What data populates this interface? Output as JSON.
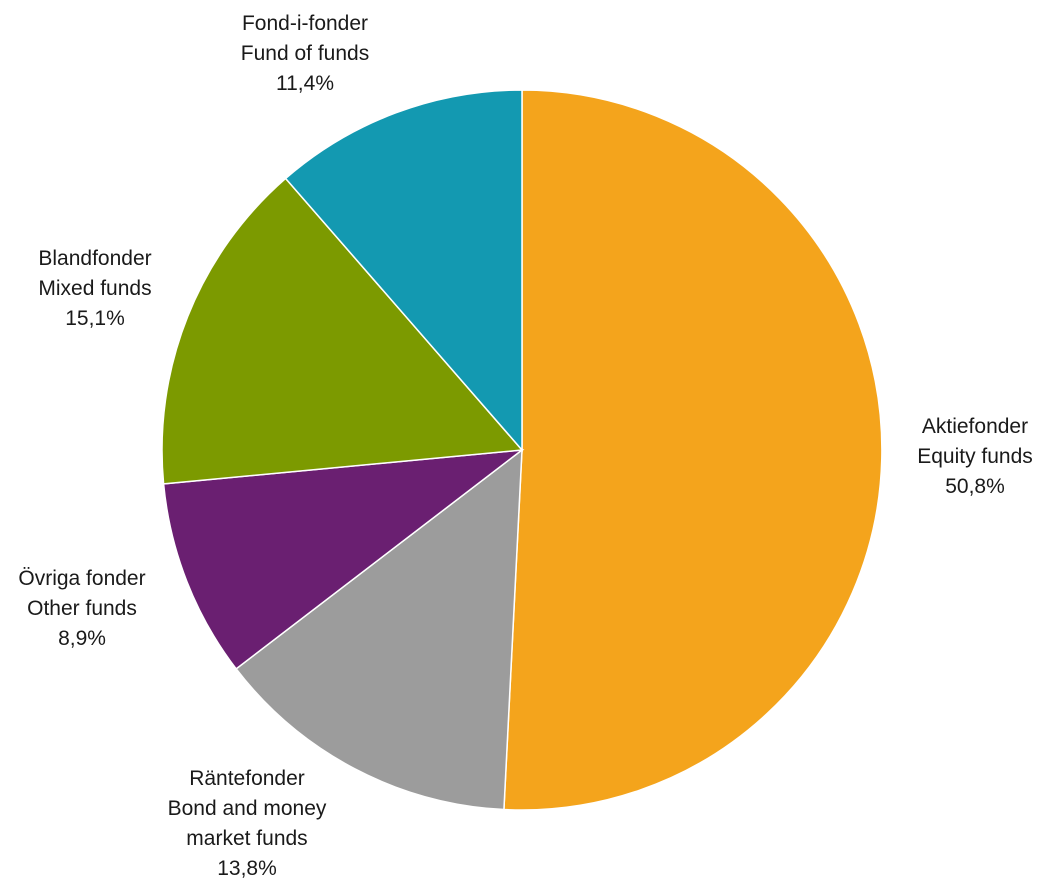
{
  "chart_data": {
    "type": "pie",
    "title": "",
    "slices": [
      {
        "id": "equity",
        "lines": [
          "Aktiefonder",
          "Equity funds"
        ],
        "value_label": "50,8%",
        "value": 50.8,
        "color": "#F4A41C"
      },
      {
        "id": "bond",
        "lines": [
          "Räntefonder",
          "Bond and money",
          "market funds"
        ],
        "value_label": "13,8%",
        "value": 13.8,
        "color": "#9C9C9C"
      },
      {
        "id": "other",
        "lines": [
          "Övriga fonder",
          "Other funds"
        ],
        "value_label": "8,9%",
        "value": 8.9,
        "color": "#6A1F71"
      },
      {
        "id": "mixed",
        "lines": [
          "Blandfonder",
          "Mixed funds"
        ],
        "value_label": "15,1%",
        "value": 15.1,
        "color": "#7C9A00"
      },
      {
        "id": "fof",
        "lines": [
          "Fond-i-fonder",
          "Fund of funds"
        ],
        "value_label": "11,4%",
        "value": 11.4,
        "color": "#1399B1"
      }
    ]
  }
}
